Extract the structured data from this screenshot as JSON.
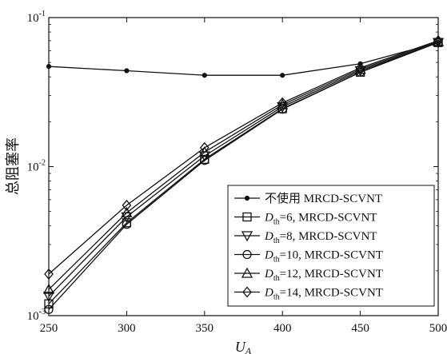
{
  "chart_data": {
    "type": "line",
    "xlabel": "U_A",
    "ylabel": "总阻塞率",
    "xlim": [
      250,
      500
    ],
    "ylim": [
      0.001,
      0.1
    ],
    "yscale": "log",
    "grid": false,
    "legend_position": "bottom-right",
    "x": [
      250,
      300,
      350,
      400,
      450,
      500
    ],
    "x_tick_labels": [
      "250",
      "300",
      "350",
      "400",
      "450",
      "500"
    ],
    "y_ticks": [
      0.001,
      0.01,
      0.1
    ],
    "y_tick_labels": [
      {
        "base": "10",
        "exp": "-3"
      },
      {
        "base": "10",
        "exp": "-2"
      },
      {
        "base": "10",
        "exp": "-1"
      }
    ],
    "series": [
      {
        "name": "不使用 MRCD-SCVNT",
        "marker": "dot",
        "values": [
          0.047,
          0.044,
          0.041,
          0.041,
          0.049,
          0.068
        ]
      },
      {
        "name": {
          "prefix": "D",
          "sub": "th",
          "rest": "=6, MRCD-SCVNT"
        },
        "marker": "square",
        "values": [
          0.0012,
          0.0042,
          0.0112,
          0.0245,
          0.043,
          0.068
        ]
      },
      {
        "name": {
          "prefix": "D",
          "sub": "th",
          "rest": "=8, MRCD-SCVNT"
        },
        "marker": "triangle-down",
        "values": [
          0.00135,
          0.0046,
          0.0118,
          0.0252,
          0.044,
          0.068
        ]
      },
      {
        "name": {
          "prefix": "D",
          "sub": "th",
          "rest": "=10, MRCD-SCVNT"
        },
        "marker": "circle",
        "values": [
          0.0011,
          0.0041,
          0.011,
          0.0243,
          0.043,
          0.068
        ]
      },
      {
        "name": {
          "prefix": "D",
          "sub": "th",
          "rest": "=12, MRCD-SCVNT"
        },
        "marker": "triangle-up",
        "values": [
          0.0015,
          0.0049,
          0.0125,
          0.026,
          0.045,
          0.069
        ]
      },
      {
        "name": {
          "prefix": "D",
          "sub": "th",
          "rest": "=14, MRCD-SCVNT"
        },
        "marker": "diamond",
        "values": [
          0.0019,
          0.0055,
          0.0134,
          0.0268,
          0.046,
          0.07
        ]
      }
    ]
  }
}
